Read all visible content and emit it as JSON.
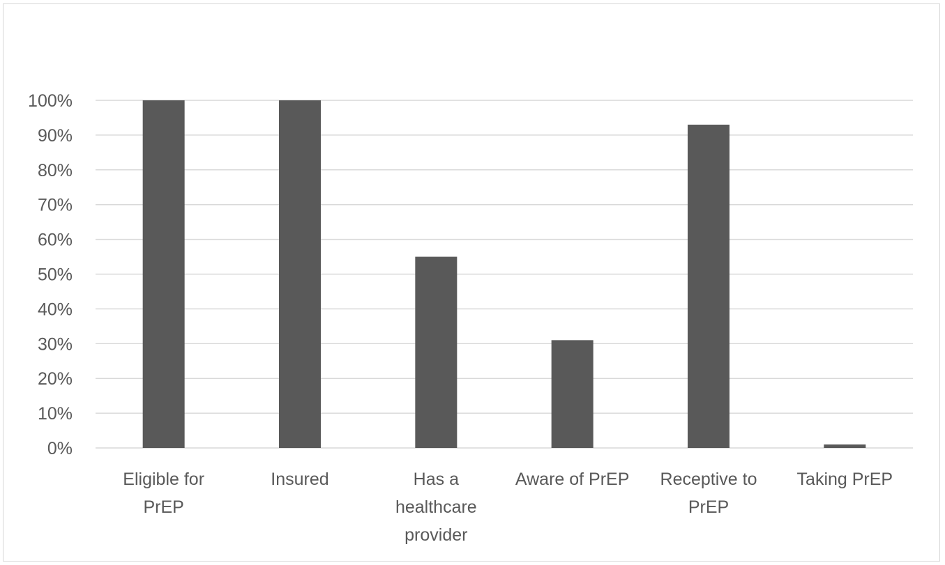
{
  "chart_data": {
    "type": "bar",
    "categories": [
      [
        "Eligible for",
        "PrEP"
      ],
      [
        "Insured"
      ],
      [
        "Has a",
        "healthcare",
        "provider"
      ],
      [
        "Aware of PrEP"
      ],
      [
        "Receptive to",
        "PrEP"
      ],
      [
        "Taking PrEP"
      ]
    ],
    "values": [
      100,
      100,
      55,
      31,
      93,
      1
    ],
    "ylim": [
      0,
      100
    ],
    "yticks": [
      0,
      10,
      20,
      30,
      40,
      50,
      60,
      70,
      80,
      90,
      100
    ],
    "ytick_labels": [
      "0%",
      "10%",
      "20%",
      "30%",
      "40%",
      "50%",
      "60%",
      "70%",
      "80%",
      "90%",
      "100%"
    ],
    "title": "",
    "xlabel": "",
    "ylabel": "",
    "grid": true,
    "legend": "none",
    "colors": {
      "bar": "#595959",
      "grid": "#d9d9d9",
      "text": "#595959",
      "frame": "#d6d6d6"
    }
  }
}
